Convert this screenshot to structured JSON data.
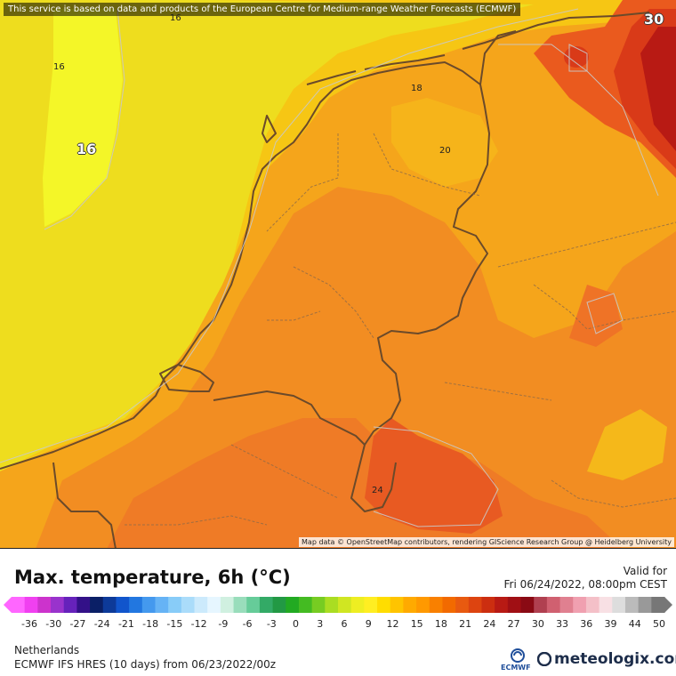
{
  "map": {
    "notice": "This service is based on data and products of the European Centre for Medium-range Weather Forecasts (ECMWF)",
    "attribution": "Map data © OpenStreetMap contributors, rendering GIScience Research Group @ Heidelberg University",
    "contour_labels": {
      "top_16": "16",
      "left_16": "16",
      "big_16": "16",
      "north_18": "18",
      "center_20": "20",
      "south_24": "24",
      "corner_30": "30"
    }
  },
  "legend": {
    "title": "Max. temperature, 6h (°C)",
    "valid_label": "Valid for",
    "valid_date": "Fri 06/24/2022, 08:00pm CEST",
    "ticks": [
      "-36",
      "-30",
      "-27",
      "-24",
      "-21",
      "-18",
      "-15",
      "-12",
      "-9",
      "-6",
      "-3",
      "0",
      "3",
      "6",
      "9",
      "12",
      "15",
      "18",
      "21",
      "24",
      "27",
      "30",
      "33",
      "36",
      "39",
      "44",
      "50"
    ],
    "colors": [
      "#ff66ff",
      "#f040f0",
      "#cc33cc",
      "#9933cc",
      "#6622bb",
      "#331188",
      "#0a1f66",
      "#0d3a99",
      "#1155cc",
      "#2277e0",
      "#4499ee",
      "#66b3f5",
      "#88ccf8",
      "#aadcfa",
      "#cceafc",
      "#e6f6ff",
      "#d0f0e0",
      "#99ddbb",
      "#66cc99",
      "#33aa66",
      "#229944",
      "#22aa22",
      "#44bb22",
      "#77cc22",
      "#aadd22",
      "#d0e622",
      "#eeee22",
      "#ffee22",
      "#ffdd00",
      "#ffc400",
      "#ffaa00",
      "#ff9900",
      "#f98000",
      "#f26a00",
      "#e85a10",
      "#dd4410",
      "#cc2e10",
      "#b81a14",
      "#a00f14",
      "#8a0a14",
      "#b04050",
      "#d06070",
      "#e08090",
      "#f0a0b0",
      "#f4c0c8",
      "#f8e0e4",
      "#dddddd",
      "#bbbbbb",
      "#999999",
      "#777777"
    ]
  },
  "footer": {
    "region": "Netherlands",
    "model": "ECMWF IFS HRES (10 days) from 06/23/2022/00z",
    "ecmwf_logo": "ECMWF",
    "brand": "meteologix.com"
  },
  "icons": {
    "ecmwf_logo": "ecmwf-logo-icon",
    "meteologix_logo": "meteologix-logo-icon"
  }
}
